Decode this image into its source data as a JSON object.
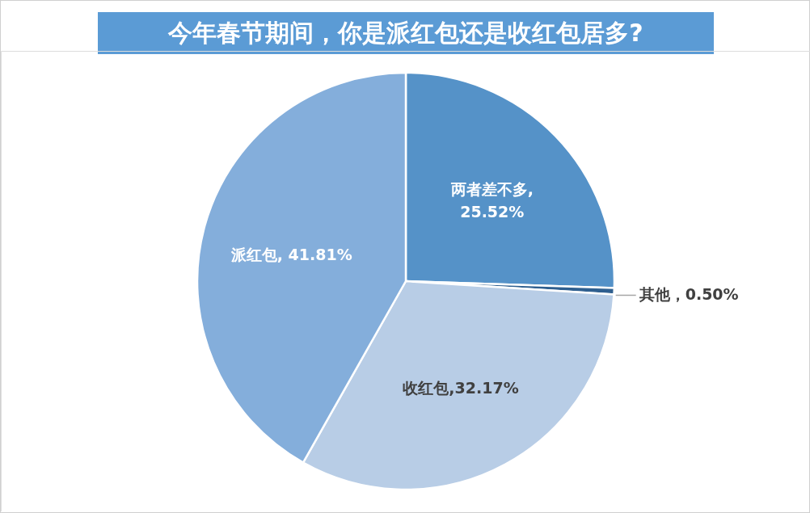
{
  "chart_data": {
    "type": "pie",
    "title": "今年春节期间，你是派红包还是收红包居多?",
    "categories": [
      "两者差不多",
      "其他",
      "收红包",
      "派红包"
    ],
    "values": [
      25.52,
      0.5,
      32.17,
      41.81
    ],
    "colors": [
      "#5592c8",
      "#2f5f8f",
      "#b8cde6",
      "#84aedb"
    ],
    "value_labels": [
      ",\n25.52%",
      " ，0.50%",
      ",32.17%",
      ", 41.81%"
    ]
  }
}
